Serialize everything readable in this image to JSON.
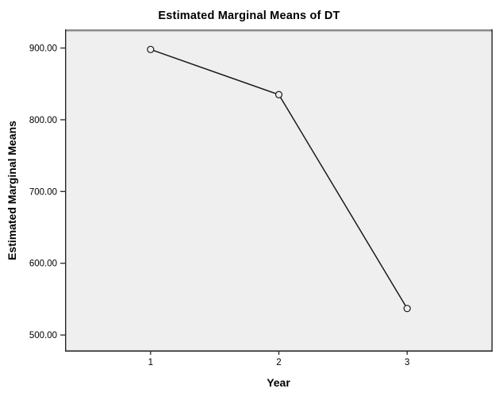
{
  "chart_data": {
    "type": "line",
    "title": "Estimated Marginal Means of DT",
    "xlabel": "Year",
    "ylabel": "Estimated Marginal Means",
    "categories": [
      "1",
      "2",
      "3"
    ],
    "x": [
      1,
      2,
      3
    ],
    "series": [
      {
        "name": "Estimated Marginal Means of DT",
        "values": [
          898,
          835,
          537
        ]
      }
    ],
    "ylim": [
      478,
      926
    ],
    "yticks": [
      900,
      800,
      700,
      600,
      500
    ],
    "ytick_labels": [
      "900.00",
      "800.00",
      "700.00",
      "600.00",
      "500.00"
    ],
    "grid": false,
    "legend": "none",
    "marker": "open-circle",
    "colors": {
      "figure_background": "#ffffff",
      "plot_background": "#efefef",
      "line": "#1a1a1a",
      "frame": "#262626",
      "frame_top": "#8b8b8b",
      "text": "#000000"
    }
  }
}
